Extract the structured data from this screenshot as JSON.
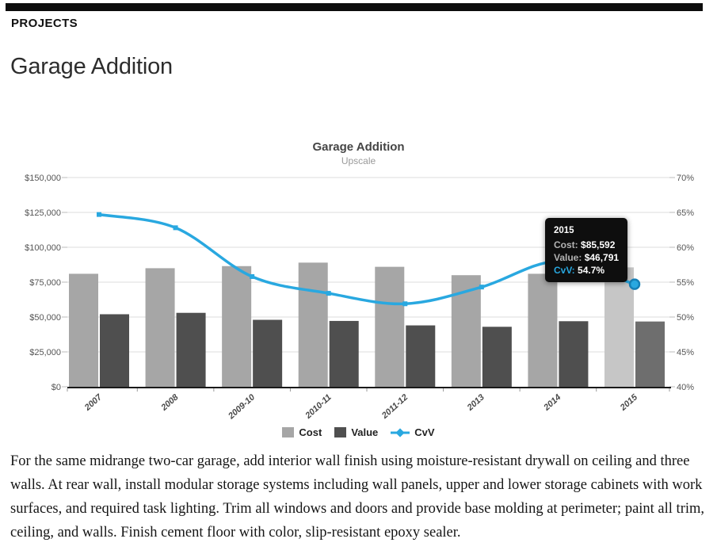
{
  "header": {
    "eyebrow": "PROJECTS",
    "title": "Garage Addition"
  },
  "chart": {
    "title": "Garage Addition",
    "subtitle": "Upscale",
    "legend": {
      "cost": "Cost",
      "value": "Value",
      "cvv": "CvV"
    }
  },
  "chart_data": {
    "type": "bar",
    "title": "Garage Addition",
    "subtitle": "Upscale",
    "categories": [
      "2007",
      "2008",
      "2009-10",
      "2010-11",
      "2011-12",
      "2013",
      "2014",
      "2015"
    ],
    "series": [
      {
        "name": "Cost",
        "type": "bar",
        "axis": "left",
        "values": [
          81000,
          85000,
          86500,
          89000,
          86000,
          80000,
          81000,
          85592
        ]
      },
      {
        "name": "Value",
        "type": "bar",
        "axis": "left",
        "values": [
          52000,
          53000,
          48000,
          47200,
          44000,
          43000,
          47000,
          46791
        ]
      },
      {
        "name": "CvV",
        "type": "line",
        "axis": "right",
        "values": [
          64.7,
          62.8,
          55.8,
          53.4,
          51.9,
          54.3,
          58.0,
          54.7
        ]
      }
    ],
    "left_axis": {
      "min": 0,
      "max": 150000,
      "ticks": [
        "$150,000",
        "$125,000",
        "$100,000",
        "$75,000",
        "$50,000",
        "$25,000",
        "$0"
      ]
    },
    "right_axis": {
      "min": 40,
      "max": 70,
      "ticks": [
        "70%",
        "65%",
        "60%",
        "55%",
        "50%",
        "45%",
        "40%"
      ]
    },
    "highlighted_index": 7,
    "grid": true,
    "legend_position": "bottom",
    "colors": {
      "cost": "#a6a6a6",
      "cost_highlight": "#c6c6c6",
      "value": "#4f4f4f",
      "value_highlight": "#6e6e6e",
      "line": "#29a8e0",
      "line_marker_ring": "#1680b7",
      "grid": "#dcdcdc",
      "axis": "#1a1a1a",
      "tick_text": "#555555",
      "x_label_text": "#4a4a4a"
    }
  },
  "tooltip": {
    "title": "2015",
    "cost_label": "Cost:",
    "cost_value": "$85,592",
    "value_label": "Value:",
    "value_value": "$46,791",
    "cvv_label": "CvV:",
    "cvv_value": "54.7%"
  },
  "description": "For the same midrange two-car garage, add interior wall finish using moisture-resistant drywall on ceiling and three walls. At rear wall, install modular storage systems including wall panels, upper and lower storage cabinets with work surfaces, and required task lighting. Trim all windows and doors and provide base molding at perimeter; paint all trim, ceiling, and walls. Finish cement floor with color, slip-resistant epoxy sealer."
}
